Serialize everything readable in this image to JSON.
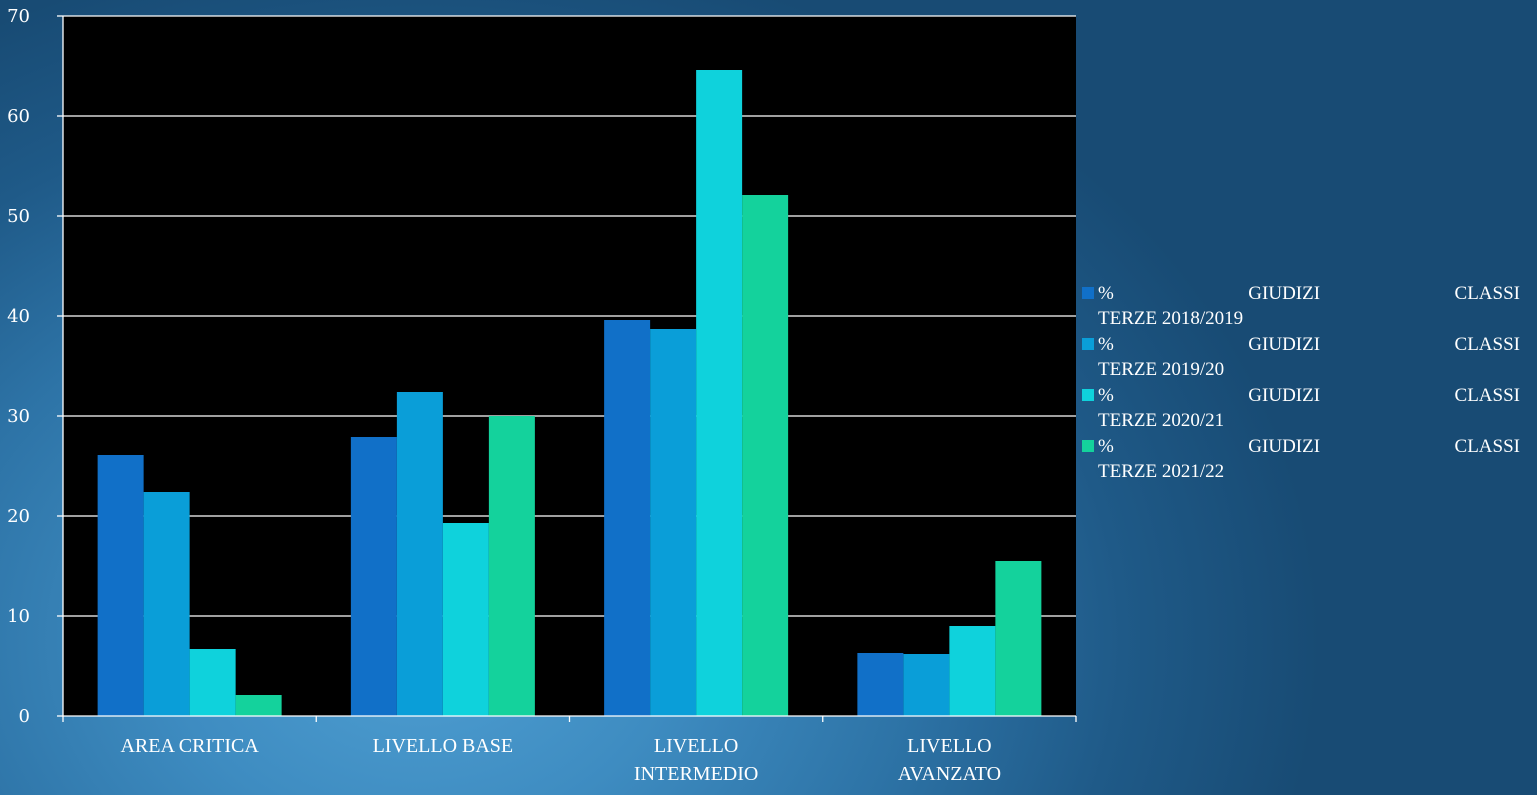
{
  "chart_data": {
    "type": "bar",
    "title": "",
    "xlabel": "",
    "ylabel": "",
    "ylim": [
      0,
      70
    ],
    "yticks": [
      0,
      10,
      20,
      30,
      40,
      50,
      60,
      70
    ],
    "grid": true,
    "legend_position": "right",
    "categories": [
      "AREA CRITICA",
      "LIVELLO BASE",
      "LIVELLO INTERMEDIO",
      "LIVELLO AVANZATO"
    ],
    "category_lines": [
      [
        "AREA CRITICA"
      ],
      [
        "LIVELLO BASE"
      ],
      [
        "LIVELLO",
        "INTERMEDIO"
      ],
      [
        "LIVELLO",
        "AVANZATO"
      ]
    ],
    "series": [
      {
        "name": "% GIUDIZI CLASSI TERZE 2018/2019",
        "legend_words": [
          "%",
          "GIUDIZI",
          "CLASSI"
        ],
        "legend_line2": "TERZE 2018/2019",
        "color": "#1170c8",
        "values": [
          26.1,
          27.9,
          39.6,
          6.3
        ]
      },
      {
        "name": "% GIUDIZI CLASSI TERZE 2019/20",
        "legend_words": [
          "%",
          "GIUDIZI",
          "CLASSI"
        ],
        "legend_line2": "TERZE 2019/20",
        "color": "#0a9ed8",
        "values": [
          22.4,
          32.4,
          38.7,
          6.2
        ]
      },
      {
        "name": "% GIUDIZI CLASSI TERZE 2020/21",
        "legend_words": [
          "%",
          "GIUDIZI",
          "CLASSI"
        ],
        "legend_line2": "TERZE 2020/21",
        "color": "#0fd2dc",
        "values": [
          6.7,
          19.3,
          64.6,
          9.0
        ]
      },
      {
        "name": "% GIUDIZI CLASSI TERZE 2021/22",
        "legend_words": [
          "%",
          "GIUDIZI",
          "CLASSI"
        ],
        "legend_line2": "TERZE 2021/22",
        "color": "#14d29c",
        "values": [
          2.1,
          30.0,
          52.1,
          15.5
        ]
      }
    ]
  }
}
